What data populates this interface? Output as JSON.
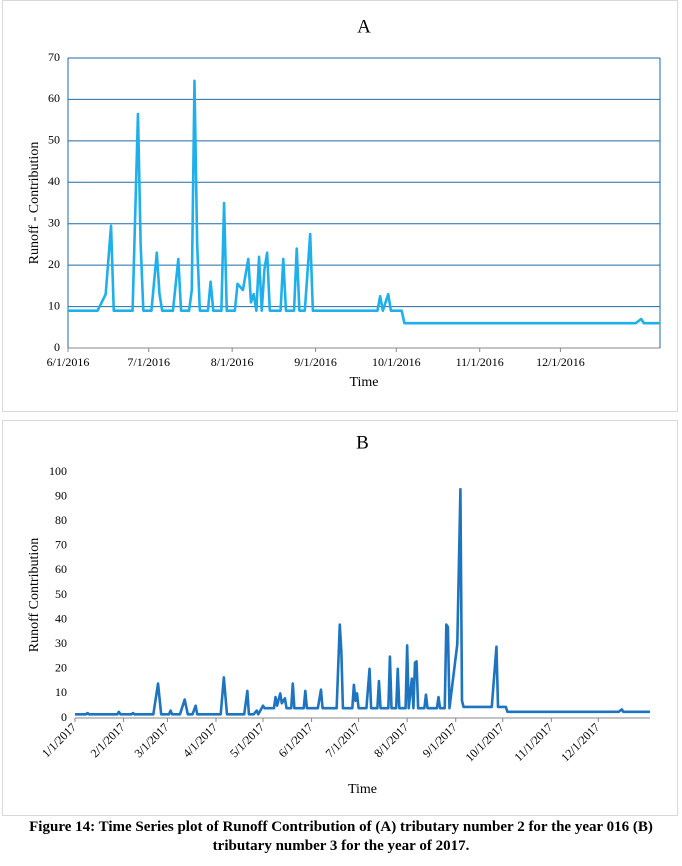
{
  "chart_data": [
    {
      "type": "line",
      "title": "A",
      "x_label": "Time",
      "y_label": "Runoff - Contribution",
      "xlim": [
        "6/1/2016",
        "1/7/2017"
      ],
      "xticks": [
        "6/1/2016",
        "7/1/2016",
        "8/1/2016",
        "9/1/2016",
        "10/1/2016",
        "11/1/2016",
        "12/1/2016"
      ],
      "ylim": [
        0,
        70
      ],
      "yticks": [
        0,
        10,
        20,
        30,
        40,
        50,
        60,
        70
      ],
      "grid": true,
      "rotate_xticks": false,
      "series": [
        {
          "color": "#1fb0ec",
          "x": [
            "6/1/2016",
            "6/12/2016",
            "6/15/2016",
            "6/17/2016",
            "6/18/2016",
            "6/25/2016",
            "6/27/2016",
            "6/28/2016",
            "6/29/2016",
            "7/2/2016",
            "7/4/2016",
            "7/5/2016",
            "7/6/2016",
            "7/10/2016",
            "7/12/2016",
            "7/13/2016",
            "7/16/2016",
            "7/17/2016",
            "7/18/2016",
            "7/19/2016",
            "7/20/2016",
            "7/23/2016",
            "7/24/2016",
            "7/25/2016",
            "7/28/2016",
            "7/29/2016",
            "7/30/2016",
            "8/2/2016",
            "8/3/2016",
            "8/5/2016",
            "8/7/2016",
            "8/8/2016",
            "8/9/2016",
            "8/10/2016",
            "8/11/2016",
            "8/12/2016",
            "8/13/2016",
            "8/14/2016",
            "8/15/2016",
            "8/19/2016",
            "8/20/2016",
            "8/21/2016",
            "8/24/2016",
            "8/25/2016",
            "8/26/2016",
            "8/28/2016",
            "8/30/2016",
            "8/31/2016",
            "9/24/2016",
            "9/25/2016",
            "9/26/2016",
            "9/28/2016",
            "9/29/2016",
            "10/3/2016",
            "10/4/2016",
            "12/29/2016",
            "12/31/2016",
            "1/1/2017",
            "1/7/2017"
          ],
          "values": [
            9,
            9,
            13,
            29.5,
            9,
            9,
            56.5,
            25,
            9,
            9,
            23,
            13,
            9,
            9,
            21.5,
            9,
            9,
            14,
            64.5,
            25,
            9,
            9,
            16,
            9,
            9,
            35,
            9,
            9,
            15.5,
            14,
            21.5,
            11,
            13,
            9,
            22,
            9,
            19,
            23,
            9,
            9,
            21.5,
            9,
            9,
            24,
            9,
            9,
            27.5,
            9,
            9,
            12.5,
            9,
            13,
            9,
            9,
            6,
            6,
            7,
            6,
            6
          ]
        }
      ]
    },
    {
      "type": "line",
      "title": "B",
      "x_label": "Time",
      "y_label": "Runoff Contribution",
      "xlim": [
        "1/1/2017",
        "1/3/2018"
      ],
      "xticks": [
        "1/1/2017",
        "2/1/2017",
        "3/1/2017",
        "4/1/2017",
        "5/1/2017",
        "6/1/2017",
        "7/1/2017",
        "8/1/2017",
        "9/1/2017",
        "10/1/2017",
        "11/1/2017",
        "12/1/2017"
      ],
      "ylim": [
        0,
        100
      ],
      "yticks": [
        0,
        10,
        20,
        30,
        40,
        50,
        60,
        70,
        80,
        90,
        100
      ],
      "grid": false,
      "rotate_xticks": true,
      "series": [
        {
          "color": "#1f74c0",
          "x": [
            "1/1/2017",
            "1/8/2017",
            "1/9/2017",
            "1/10/2017",
            "1/28/2017",
            "1/29/2017",
            "1/30/2017",
            "2/6/2017",
            "2/7/2017",
            "2/8/2017",
            "2/20/2017",
            "2/23/2017",
            "2/25/2017",
            "3/2/2017",
            "3/3/2017",
            "3/4/2017",
            "3/9/2017",
            "3/12/2017",
            "3/14/2017",
            "3/17/2017",
            "3/19/2017",
            "3/20/2017",
            "4/4/2017",
            "4/6/2017",
            "4/8/2017",
            "4/19/2017",
            "4/21/2017",
            "4/22/2017",
            "4/25/2017",
            "4/27/2017",
            "4/28/2017",
            "5/1/2017",
            "5/2/2017",
            "5/8/2017",
            "5/9/2017",
            "5/10/2017",
            "5/12/2017",
            "5/13/2017",
            "5/15/2017",
            "5/16/2017",
            "5/19/2017",
            "5/20/2017",
            "5/21/2017",
            "5/27/2017",
            "5/28/2017",
            "5/29/2017",
            "6/5/2017",
            "6/7/2017",
            "6/8/2017",
            "6/17/2017",
            "6/19/2017",
            "6/20/2017",
            "6/21/2017",
            "6/27/2017",
            "6/28/2017",
            "6/29/2017",
            "6/30/2017",
            "7/1/2017",
            "7/6/2017",
            "7/8/2017",
            "7/9/2017",
            "7/13/2017",
            "7/14/2017",
            "7/15/2017",
            "7/20/2017",
            "7/21/2017",
            "7/22/2017",
            "7/25/2017",
            "7/26/2017",
            "7/27/2017",
            "7/31/2017",
            "8/1/2017",
            "8/2/2017",
            "8/4/2017",
            "8/5/2017",
            "8/6/2017",
            "8/7/2017",
            "8/8/2017",
            "8/12/2017",
            "8/13/2017",
            "8/14/2017",
            "8/20/2017",
            "8/21/2017",
            "8/22/2017",
            "8/25/2017",
            "8/26/2017",
            "8/27/2017",
            "8/28/2017",
            "9/2/2017",
            "9/4/2017",
            "9/5/2017",
            "9/6/2017",
            "9/24/2017",
            "9/27/2017",
            "9/28/2017",
            "10/3/2017",
            "10/4/2017",
            "12/14/2017",
            "12/16/2017",
            "12/17/2017",
            "1/3/2018"
          ],
          "values": [
            1.5,
            1.5,
            2,
            1.5,
            1.5,
            2.5,
            1.5,
            1.5,
            2,
            1.5,
            1.5,
            14,
            1.5,
            1.5,
            3,
            1.5,
            1.5,
            7.5,
            1.5,
            1.5,
            5,
            1.5,
            1.5,
            16.5,
            1.5,
            1.5,
            11,
            1.5,
            1.5,
            3,
            1.5,
            5,
            4,
            4,
            8.5,
            5,
            10,
            6,
            8,
            4,
            4,
            14,
            4,
            4,
            11,
            4,
            4,
            11.5,
            4,
            4,
            38,
            27,
            4,
            4,
            13.5,
            7,
            10,
            4,
            4,
            20,
            4,
            4,
            15,
            4,
            4,
            25,
            4,
            4,
            20,
            4,
            4,
            29.5,
            4,
            16,
            4,
            22.5,
            23,
            4,
            4,
            9.5,
            4,
            4,
            8.5,
            4,
            4,
            38,
            37,
            4,
            30,
            93,
            7,
            4.5,
            4.5,
            29,
            4.5,
            4.5,
            2.5,
            2.5,
            3.5,
            2.5,
            2.5
          ]
        }
      ]
    }
  ],
  "caption": "Figure 14: Time Series plot of Runoff Contribution of (A) tributary number 2 for the year 016 (B) tributary number 3 for the year of 2017."
}
